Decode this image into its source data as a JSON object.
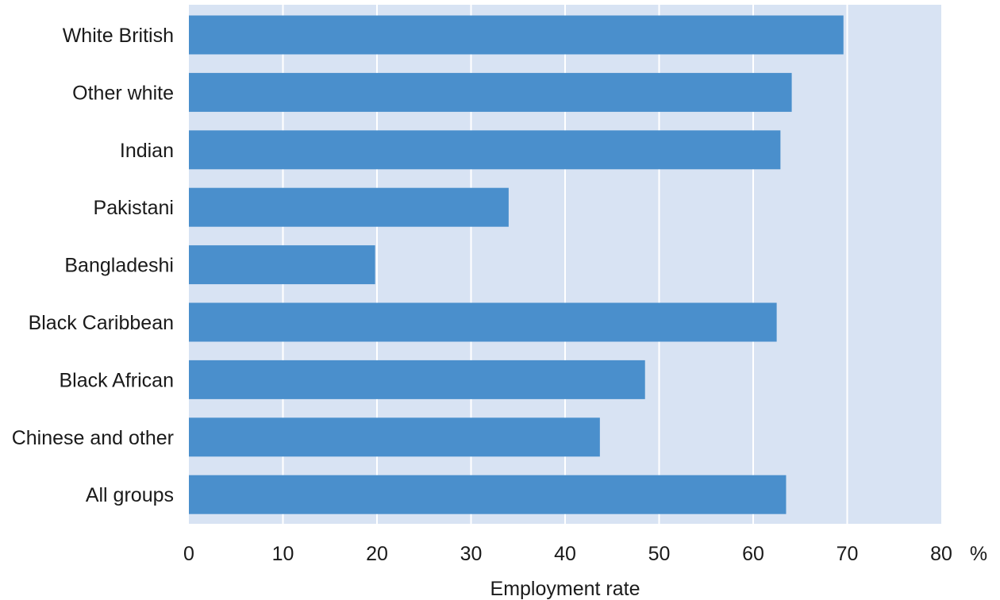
{
  "chart_data": {
    "type": "bar",
    "orientation": "horizontal",
    "categories": [
      "White British",
      "Other white",
      "Indian",
      "Pakistani",
      "Bangladeshi",
      "Black Caribbean",
      "Black African",
      "Chinese and other",
      "All groups"
    ],
    "values": [
      69.6,
      64.1,
      62.9,
      34.0,
      19.8,
      62.5,
      48.5,
      43.7,
      63.5
    ],
    "xlabel": "Employment rate",
    "unit": "%",
    "xlim": [
      0,
      80
    ],
    "xticks": [
      0,
      10,
      20,
      30,
      40,
      50,
      60,
      70,
      80
    ],
    "grid": true,
    "colors": {
      "bar": "#4a8fcc",
      "plot_background": "#d8e3f3",
      "gridline": "#ffffff"
    }
  }
}
